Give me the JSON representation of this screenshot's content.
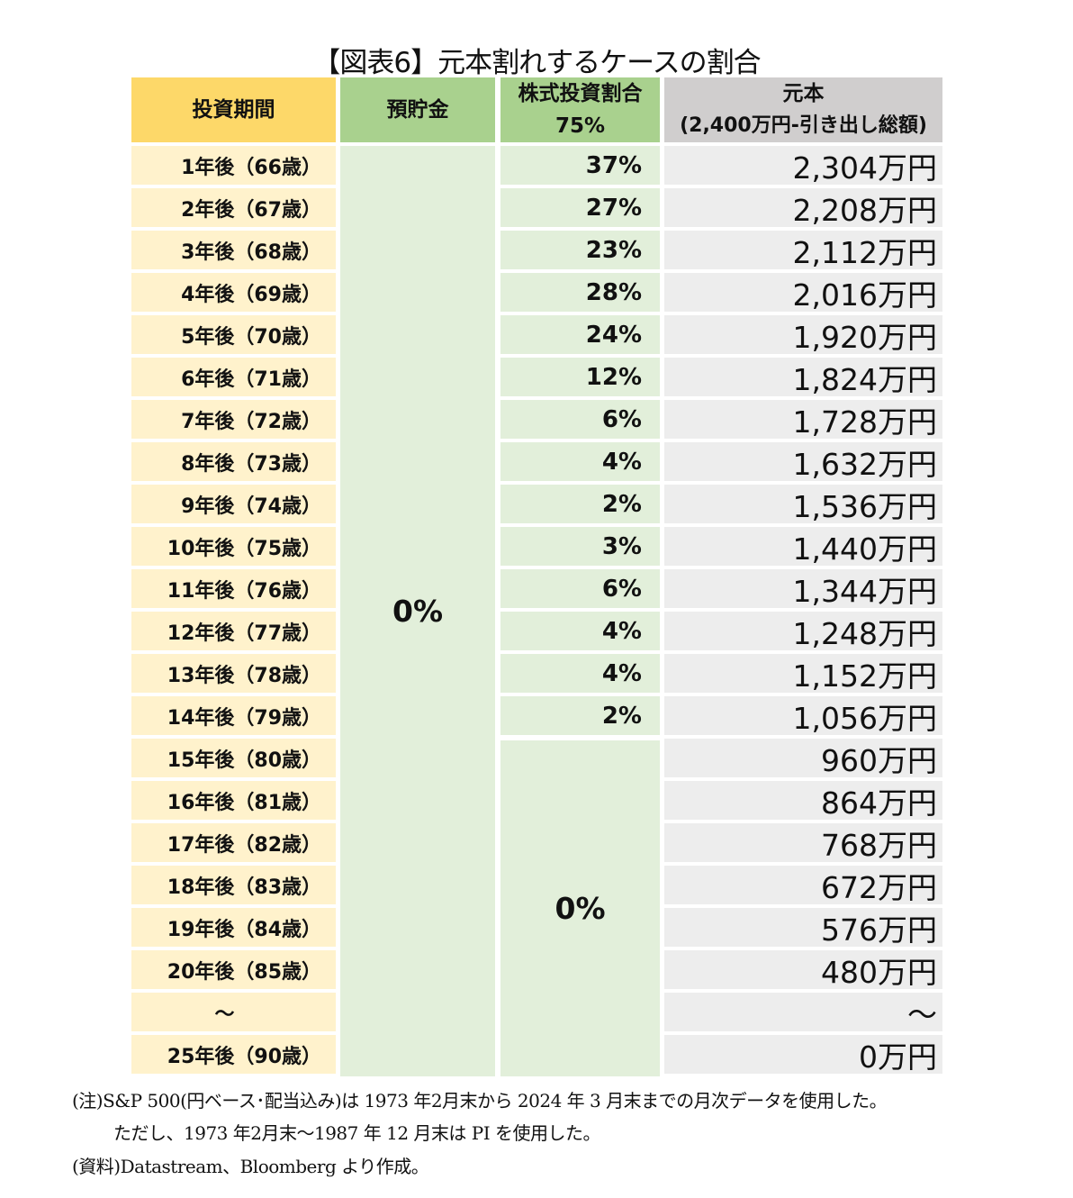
{
  "title": "【図表6】元本割れするケースの割合",
  "colors": {
    "header_period": "#fdd869",
    "header_green": "#a9d18e",
    "header_gray": "#d0cece",
    "body_period": "#fff2cc",
    "body_green": "#e2efda",
    "body_gray": "#ededed"
  },
  "chart_data": {
    "type": "table",
    "title": "【図表6】元本割れするケースの割合",
    "columns": [
      "投資期間",
      "預貯金",
      "株式投資割合 75%",
      "元本 (2,400万円-引き出し総額)"
    ],
    "header": {
      "period": "投資期間",
      "savings": "預貯金",
      "stock_line1": "株式投資割合",
      "stock_line2": "75%",
      "principal_line1": "元本",
      "principal_line2": "(2,400万円-引き出し総額)"
    },
    "savings_merged": "0%",
    "stock_merged_later": "0%",
    "rows": [
      {
        "period": "1年後（66歳）",
        "stock": "37%",
        "principal": "2,304万円"
      },
      {
        "period": "2年後（67歳）",
        "stock": "27%",
        "principal": "2,208万円"
      },
      {
        "period": "3年後（68歳）",
        "stock": "23%",
        "principal": "2,112万円"
      },
      {
        "period": "4年後（69歳）",
        "stock": "28%",
        "principal": "2,016万円"
      },
      {
        "period": "5年後（70歳）",
        "stock": "24%",
        "principal": "1,920万円"
      },
      {
        "period": "6年後（71歳）",
        "stock": "12%",
        "principal": "1,824万円"
      },
      {
        "period": "7年後（72歳）",
        "stock": "6%",
        "principal": "1,728万円"
      },
      {
        "period": "8年後（73歳）",
        "stock": "4%",
        "principal": "1,632万円"
      },
      {
        "period": "9年後（74歳）",
        "stock": "2%",
        "principal": "1,536万円"
      },
      {
        "period": "10年後（75歳）",
        "stock": "3%",
        "principal": "1,440万円"
      },
      {
        "period": "11年後（76歳）",
        "stock": "6%",
        "principal": "1,344万円"
      },
      {
        "period": "12年後（77歳）",
        "stock": "4%",
        "principal": "1,248万円"
      },
      {
        "period": "13年後（78歳）",
        "stock": "4%",
        "principal": "1,152万円"
      },
      {
        "period": "14年後（79歳）",
        "stock": "2%",
        "principal": "1,056万円"
      },
      {
        "period": "15年後（80歳）",
        "stock": "",
        "principal": "960万円"
      },
      {
        "period": "16年後（81歳）",
        "stock": "",
        "principal": "864万円"
      },
      {
        "period": "17年後（82歳）",
        "stock": "",
        "principal": "768万円"
      },
      {
        "period": "18年後（83歳）",
        "stock": "",
        "principal": "672万円"
      },
      {
        "period": "19年後（84歳）",
        "stock": "",
        "principal": "576万円"
      },
      {
        "period": "20年後（85歳）",
        "stock": "",
        "principal": "480万円"
      },
      {
        "period": "～",
        "stock": "",
        "principal": "～"
      },
      {
        "period": "25年後（90歳）",
        "stock": "",
        "principal": "0万円"
      }
    ]
  },
  "notes": {
    "line1": "(注)S&P 500(円ベース･配当込み)は 1973 年2月末から 2024 年 3 月末までの月次データを使用した。",
    "line2": "ただし、1973 年2月末～1987 年 12 月末は PI を使用した。",
    "source": "(資料)Datastream、Bloomberg より作成。"
  }
}
